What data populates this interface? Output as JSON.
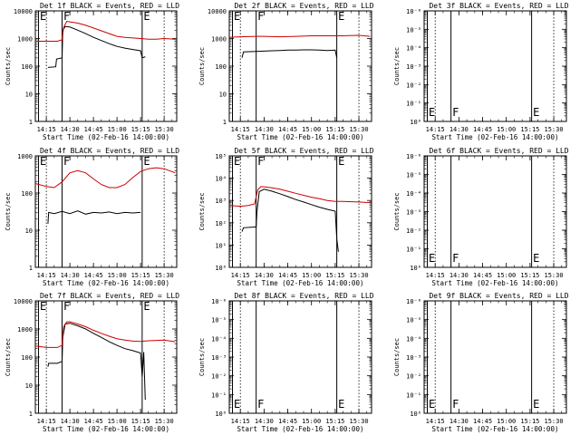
{
  "chart_data": [
    {
      "type": "line",
      "title": "Det 1f BLACK = Events, RED = LLD",
      "xlabel": "Start Time (02-Feb-16 14:00:00)",
      "ylabel": "Counts/sec",
      "scale": "log",
      "yticks": [
        "1",
        "10",
        "100",
        "1000",
        "10000"
      ],
      "ylim": [
        1,
        10000
      ],
      "xlim": [
        "14:08",
        "15:38"
      ],
      "xticks": [
        "14:15",
        "14:30",
        "14:45",
        "15:00",
        "15:15",
        "15:30"
      ],
      "markers": {
        "E1": "14:10",
        "F": "14:25",
        "E2": "15:16"
      },
      "dotted_lines": [
        "14:15",
        "15:30"
      ],
      "series": [
        {
          "color": "#000000",
          "points": [
            [
              "14:16",
              90
            ],
            [
              "14:21",
              95
            ],
            [
              "14:21.5",
              180
            ],
            [
              "14:25",
              200
            ],
            [
              "14:25.5",
              2000
            ],
            [
              "14:27",
              2700
            ],
            [
              "14:30",
              2600
            ],
            [
              "14:35",
              2000
            ],
            [
              "14:40",
              1500
            ],
            [
              "14:45",
              1100
            ],
            [
              "14:50",
              850
            ],
            [
              "14:55",
              650
            ],
            [
              "15:00",
              520
            ],
            [
              "15:05",
              450
            ],
            [
              "15:10",
              400
            ],
            [
              "15:15",
              360
            ],
            [
              "15:16",
              200
            ],
            [
              "15:18",
              220
            ]
          ]
        },
        {
          "color": "#cc0000",
          "points": [
            [
              "14:08",
              800
            ],
            [
              "14:15",
              800
            ],
            [
              "14:22",
              800
            ],
            [
              "14:25",
              900
            ],
            [
              "14:26",
              2500
            ],
            [
              "14:28",
              4200
            ],
            [
              "14:30",
              4000
            ],
            [
              "14:35",
              3600
            ],
            [
              "14:40",
              3000
            ],
            [
              "14:45",
              2400
            ],
            [
              "14:50",
              1900
            ],
            [
              "14:55",
              1500
            ],
            [
              "15:00",
              1200
            ],
            [
              "15:05",
              1100
            ],
            [
              "15:10",
              1050
            ],
            [
              "15:15",
              1000
            ],
            [
              "15:20",
              950
            ],
            [
              "15:25",
              950
            ],
            [
              "15:30",
              1000
            ],
            [
              "15:37",
              950
            ]
          ]
        }
      ]
    },
    {
      "type": "line",
      "title": "Det 2f BLACK = Events, RED = LLD",
      "xlabel": "Start Time (02-Feb-16 14:00:00)",
      "ylabel": "Counts/sec",
      "scale": "log",
      "yticks": [
        "1",
        "10",
        "100",
        "1000",
        "10000"
      ],
      "ylim": [
        1,
        10000
      ],
      "xlim": [
        "14:08",
        "15:38"
      ],
      "xticks": [
        "14:15",
        "14:30",
        "14:45",
        "15:00",
        "15:15",
        "15:30"
      ],
      "markers": {
        "E1": "14:10",
        "F": "14:25",
        "E2": "15:16"
      },
      "dotted_lines": [
        "14:15",
        "15:30"
      ],
      "series": [
        {
          "color": "#000000",
          "points": [
            [
              "14:16",
              200
            ],
            [
              "14:17",
              330
            ],
            [
              "14:25",
              340
            ],
            [
              "14:30",
              350
            ],
            [
              "14:35",
              360
            ],
            [
              "14:40",
              370
            ],
            [
              "14:45",
              380
            ],
            [
              "14:50",
              380
            ],
            [
              "14:55",
              390
            ],
            [
              "15:00",
              390
            ],
            [
              "15:05",
              380
            ],
            [
              "15:10",
              370
            ],
            [
              "15:15",
              380
            ],
            [
              "15:16",
              200
            ]
          ]
        },
        {
          "color": "#cc0000",
          "points": [
            [
              "14:08",
              1100
            ],
            [
              "14:15",
              1150
            ],
            [
              "14:25",
              1200
            ],
            [
              "14:30",
              1200
            ],
            [
              "14:40",
              1150
            ],
            [
              "14:50",
              1200
            ],
            [
              "15:00",
              1250
            ],
            [
              "15:10",
              1250
            ],
            [
              "15:20",
              1250
            ],
            [
              "15:30",
              1300
            ],
            [
              "15:37",
              1200
            ]
          ]
        }
      ]
    },
    {
      "type": "line",
      "title": "Det 3f BLACK = Events, RED = LLD",
      "xlabel": "Start Time (02-Feb-16 14:00:00)",
      "ylabel": "Counts/sec",
      "scale": "log",
      "yticks": [
        "10⁰",
        "10⁻¹",
        "10⁻²",
        "10⁻³",
        "10⁻⁴",
        "10⁻⁵",
        "10⁻⁶"
      ],
      "ylim": [
        1,
        1e-06
      ],
      "xlim": [
        "14:08",
        "15:38"
      ],
      "xticks": [
        "14:15",
        "14:30",
        "14:45",
        "15:00",
        "15:15",
        "15:30"
      ],
      "markers": {
        "E1": "14:10",
        "F": "14:25",
        "E2": "15:16"
      },
      "dotted_lines": [
        "14:15",
        "15:30"
      ],
      "series": []
    },
    {
      "type": "line",
      "title": "Det 4f BLACK = Events, RED = LLD",
      "xlabel": "Start Time (02-Feb-16 14:00:00)",
      "ylabel": "Counts/sec",
      "scale": "log",
      "yticks": [
        "1",
        "10",
        "100",
        "1000"
      ],
      "ylim": [
        1,
        1000
      ],
      "xlim": [
        "14:08",
        "15:38"
      ],
      "xticks": [
        "14:15",
        "14:30",
        "14:45",
        "15:00",
        "15:15",
        "15:30"
      ],
      "markers": {
        "E1": "14:10",
        "F": "14:25",
        "E2": "15:16"
      },
      "dotted_lines": [
        "14:15",
        "15:30"
      ],
      "series": [
        {
          "color": "#000000",
          "points": [
            [
              "14:16",
              15
            ],
            [
              "14:16.5",
              30
            ],
            [
              "14:20",
              28
            ],
            [
              "14:25",
              32
            ],
            [
              "14:30",
              28
            ],
            [
              "14:35",
              33
            ],
            [
              "14:40",
              27
            ],
            [
              "14:45",
              30
            ],
            [
              "14:50",
              29
            ],
            [
              "14:55",
              31
            ],
            [
              "15:00",
              28
            ],
            [
              "15:05",
              30
            ],
            [
              "15:10",
              29
            ],
            [
              "15:15",
              30
            ]
          ]
        },
        {
          "color": "#cc0000",
          "points": [
            [
              "14:08",
              180
            ],
            [
              "14:15",
              150
            ],
            [
              "14:20",
              140
            ],
            [
              "14:25",
              200
            ],
            [
              "14:30",
              350
            ],
            [
              "14:35",
              400
            ],
            [
              "14:40",
              350
            ],
            [
              "14:45",
              240
            ],
            [
              "14:50",
              170
            ],
            [
              "14:55",
              140
            ],
            [
              "15:00",
              140
            ],
            [
              "15:05",
              170
            ],
            [
              "15:10",
              260
            ],
            [
              "15:15",
              380
            ],
            [
              "15:20",
              450
            ],
            [
              "15:25",
              480
            ],
            [
              "15:30",
              450
            ],
            [
              "15:37",
              350
            ]
          ]
        }
      ]
    },
    {
      "type": "line",
      "title": "Det 5f BLACK = Events, RED = LLD",
      "xlabel": "Start Time (02-Feb-16 14:00:00)",
      "ylabel": "Counts/sec",
      "scale": "log",
      "yticks": [
        "10⁰",
        "10¹",
        "10²",
        "10³",
        "10⁴",
        "10⁵"
      ],
      "ylim": [
        1,
        100000
      ],
      "xlim": [
        "14:08",
        "15:38"
      ],
      "xticks": [
        "14:15",
        "14:30",
        "14:45",
        "15:00",
        "15:15",
        "15:30"
      ],
      "markers": {
        "E1": "14:10",
        "F": "14:25",
        "E2": "15:16"
      },
      "dotted_lines": [
        "14:15",
        "15:30"
      ],
      "series": [
        {
          "color": "#000000",
          "points": [
            [
              "14:16",
              40
            ],
            [
              "14:17",
              60
            ],
            [
              "14:25",
              65
            ],
            [
              "14:25.5",
              300
            ],
            [
              "14:27",
              2500
            ],
            [
              "14:30",
              3200
            ],
            [
              "14:35",
              2600
            ],
            [
              "14:40",
              2000
            ],
            [
              "14:45",
              1500
            ],
            [
              "14:50",
              1100
            ],
            [
              "14:55",
              850
            ],
            [
              "15:00",
              650
            ],
            [
              "15:05",
              500
            ],
            [
              "15:10",
              400
            ],
            [
              "15:15",
              330
            ],
            [
              "15:16",
              20
            ],
            [
              "15:17",
              5
            ]
          ]
        },
        {
          "color": "#cc0000",
          "points": [
            [
              "14:08",
              600
            ],
            [
              "14:15",
              550
            ],
            [
              "14:20",
              600
            ],
            [
              "14:24",
              700
            ],
            [
              "14:26",
              3000
            ],
            [
              "14:28",
              4200
            ],
            [
              "14:30",
              4100
            ],
            [
              "14:35",
              3700
            ],
            [
              "14:40",
              3200
            ],
            [
              "14:45",
              2600
            ],
            [
              "14:50",
              2100
            ],
            [
              "14:55",
              1700
            ],
            [
              "15:00",
              1400
            ],
            [
              "15:05",
              1200
            ],
            [
              "15:10",
              1000
            ],
            [
              "15:15",
              900
            ],
            [
              "15:20",
              900
            ],
            [
              "15:30",
              850
            ],
            [
              "15:37",
              800
            ]
          ]
        }
      ]
    },
    {
      "type": "line",
      "title": "Det 6f BLACK = Events, RED = LLD",
      "xlabel": "Start Time (02-Feb-16 14:00:00)",
      "ylabel": "Counts/sec",
      "scale": "log",
      "yticks": [
        "10⁰",
        "10⁻¹",
        "10⁻²",
        "10⁻³",
        "10⁻⁴",
        "10⁻⁵",
        "10⁻⁶"
      ],
      "ylim": [
        1,
        1e-06
      ],
      "xlim": [
        "14:08",
        "15:38"
      ],
      "xticks": [
        "14:15",
        "14:30",
        "14:45",
        "15:00",
        "15:15",
        "15:30"
      ],
      "markers": {
        "E1": "14:10",
        "F": "14:25",
        "E2": "15:16"
      },
      "dotted_lines": [
        "14:15",
        "15:30"
      ],
      "series": []
    },
    {
      "type": "line",
      "title": "Det 7f BLACK = Events, RED = LLD",
      "xlabel": "Start Time (02-Feb-16 14:00:00)",
      "ylabel": "Counts/sec",
      "scale": "log",
      "yticks": [
        "1",
        "10",
        "100",
        "1000",
        "10000"
      ],
      "ylim": [
        1,
        10000
      ],
      "xlim": [
        "14:08",
        "15:38"
      ],
      "xticks": [
        "14:15",
        "14:30",
        "14:45",
        "15:00",
        "15:15",
        "15:30"
      ],
      "markers": {
        "E1": "14:10",
        "F": "14:25",
        "E2": "15:16"
      },
      "dotted_lines": [
        "14:15",
        "15:30"
      ],
      "series": [
        {
          "color": "#000000",
          "points": [
            [
              "14:16",
              45
            ],
            [
              "14:16.5",
              60
            ],
            [
              "14:22",
              60
            ],
            [
              "14:25",
              70
            ],
            [
              "14:25.5",
              500
            ],
            [
              "14:27",
              1500
            ],
            [
              "14:30",
              1600
            ],
            [
              "14:35",
              1300
            ],
            [
              "14:40",
              1000
            ],
            [
              "14:45",
              700
            ],
            [
              "14:50",
              500
            ],
            [
              "14:55",
              350
            ],
            [
              "15:00",
              260
            ],
            [
              "15:05",
              200
            ],
            [
              "15:10",
              170
            ],
            [
              "15:15",
              140
            ],
            [
              "15:16",
              20
            ],
            [
              "15:17",
              150
            ],
            [
              "15:18",
              3
            ]
          ]
        },
        {
          "color": "#cc0000",
          "points": [
            [
              "14:08",
              250
            ],
            [
              "14:15",
              220
            ],
            [
              "14:22",
              220
            ],
            [
              "14:25",
              260
            ],
            [
              "14:26",
              1200
            ],
            [
              "14:28",
              1800
            ],
            [
              "14:30",
              1800
            ],
            [
              "14:35",
              1500
            ],
            [
              "14:40",
              1200
            ],
            [
              "14:45",
              900
            ],
            [
              "14:50",
              700
            ],
            [
              "14:55",
              550
            ],
            [
              "15:00",
              450
            ],
            [
              "15:05",
              400
            ],
            [
              "15:10",
              370
            ],
            [
              "15:15",
              360
            ],
            [
              "15:20",
              380
            ],
            [
              "15:30",
              400
            ],
            [
              "15:37",
              350
            ]
          ]
        }
      ]
    },
    {
      "type": "line",
      "title": "Det 8f BLACK = Events, RED = LLD",
      "xlabel": "Start Time (02-Feb-16 14:00:00)",
      "ylabel": "Counts/sec",
      "scale": "log",
      "yticks": [
        "10⁰",
        "10⁻¹",
        "10⁻²",
        "10⁻³",
        "10⁻⁴",
        "10⁻⁵",
        "10⁻⁶"
      ],
      "ylim": [
        1,
        1e-06
      ],
      "xlim": [
        "14:08",
        "15:38"
      ],
      "xticks": [
        "14:15",
        "14:30",
        "14:45",
        "15:00",
        "15:15",
        "15:30"
      ],
      "markers": {
        "E1": "14:10",
        "F": "14:25",
        "E2": "15:16"
      },
      "dotted_lines": [
        "14:15",
        "15:30"
      ],
      "series": []
    },
    {
      "type": "line",
      "title": "Det 9f BLACK = Events, RED = LLD",
      "xlabel": "Start Time (02-Feb-16 14:00:00)",
      "ylabel": "Counts/sec",
      "scale": "log",
      "yticks": [
        "10⁰",
        "10⁻¹",
        "10⁻²",
        "10⁻³",
        "10⁻⁴",
        "10⁻⁵",
        "10⁻⁶"
      ],
      "ylim": [
        1,
        1e-06
      ],
      "xlim": [
        "14:08",
        "15:38"
      ],
      "xticks": [
        "14:15",
        "14:30",
        "14:45",
        "15:00",
        "15:15",
        "15:30"
      ],
      "markers": {
        "E1": "14:10",
        "F": "14:25",
        "E2": "15:16"
      },
      "dotted_lines": [
        "14:15",
        "15:30"
      ],
      "series": []
    }
  ],
  "labels": {
    "marker_e": "E",
    "marker_f": "F"
  }
}
